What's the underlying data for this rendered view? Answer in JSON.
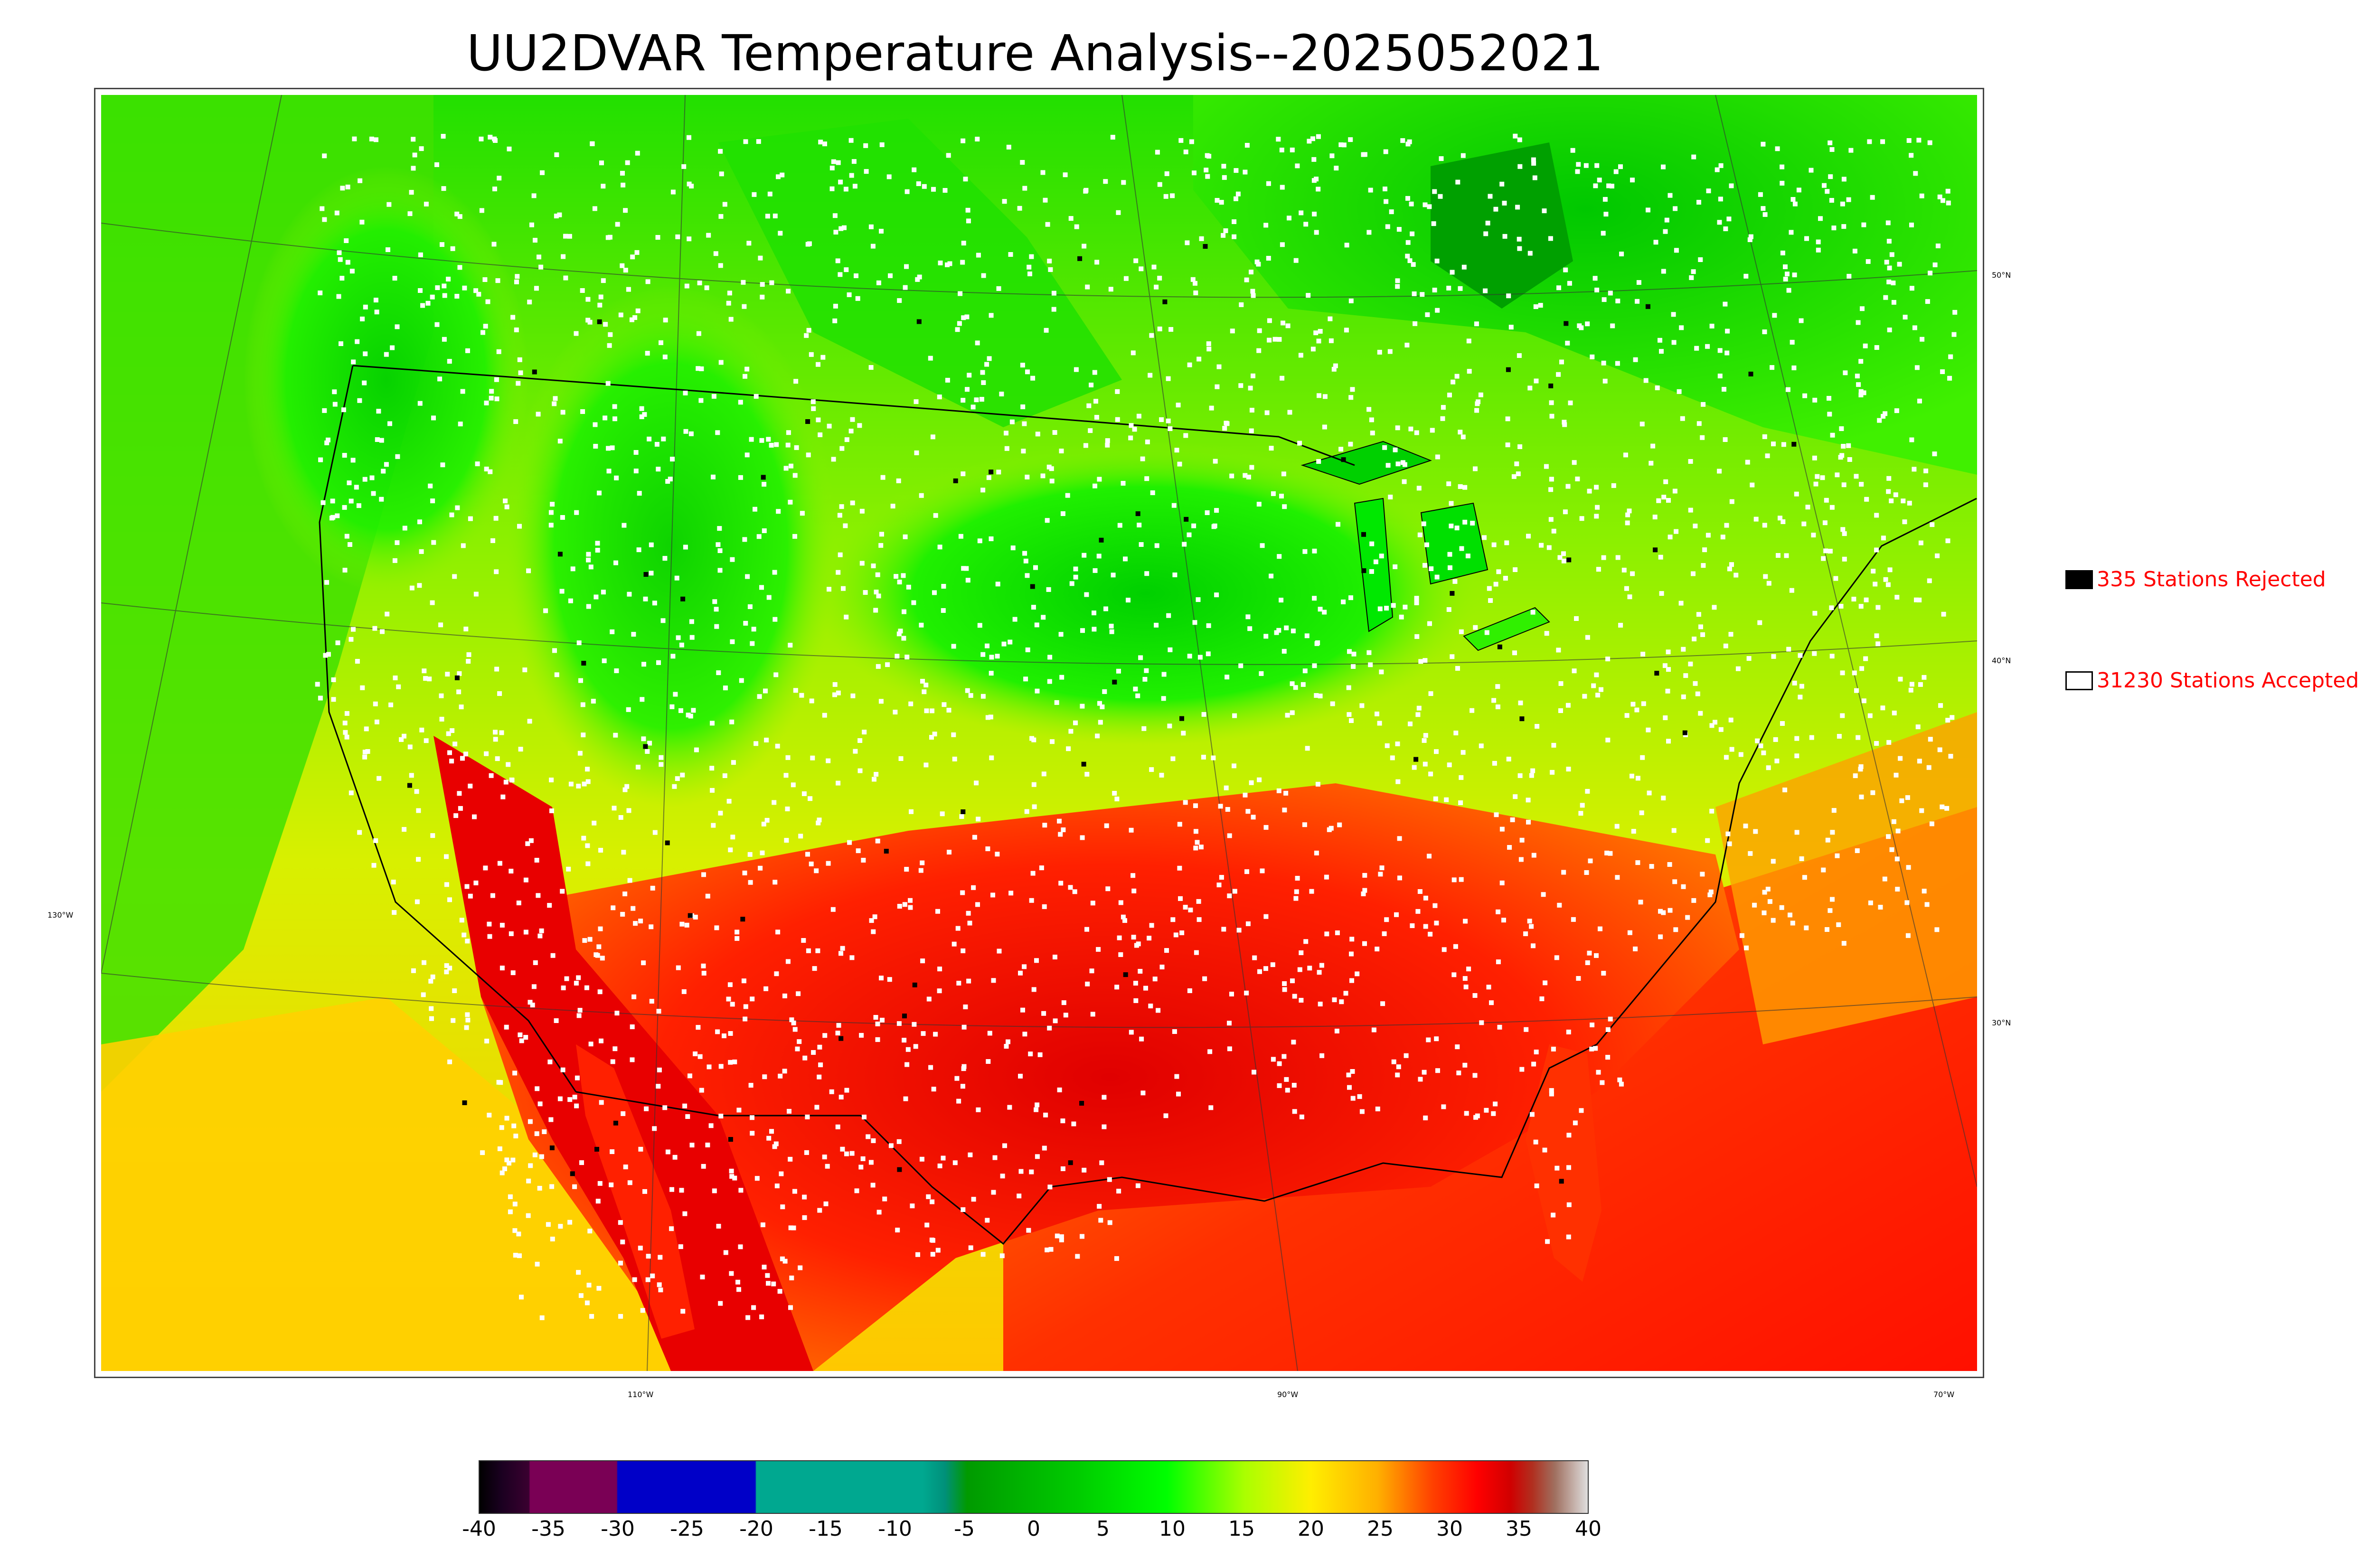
{
  "title": "UU2DVAR Temperature Analysis--2025052021",
  "legend": {
    "rejected": {
      "label": "335 Stations Rejected",
      "swatch_color": "#000000"
    },
    "accepted": {
      "label": "31230 Stations Accepted",
      "swatch_color": "#ffffff"
    }
  },
  "longitude_labels": [
    "130°W",
    "110°W",
    "90°W",
    "70°W"
  ],
  "latitude_labels": [
    "50°N",
    "40°N",
    "30°N"
  ],
  "colorbar": {
    "ticks": [
      "-40",
      "-35",
      "-30",
      "-25",
      "-20",
      "-15",
      "-10",
      "-5",
      "0",
      "5",
      "10",
      "15",
      "20",
      "25",
      "30",
      "35",
      "40"
    ],
    "range": [
      -40,
      40
    ],
    "colors": {
      "min_dark": "#0a0014",
      "purple": "#7a0055",
      "blue": "#0000c8",
      "teal": "#00a890",
      "green_dark": "#009a00",
      "green": "#00ff00",
      "yellow": "#ffff00",
      "orange": "#ffa500",
      "red": "#ff0000",
      "red_dark": "#d00000",
      "max_light": "#d8d8d8"
    }
  },
  "map": {
    "ocean_pacific_color": "#c8f000",
    "gulf_color": "#ff2000",
    "station_accepted_color": "#ffffff",
    "station_rejected_color": "#000000"
  }
}
